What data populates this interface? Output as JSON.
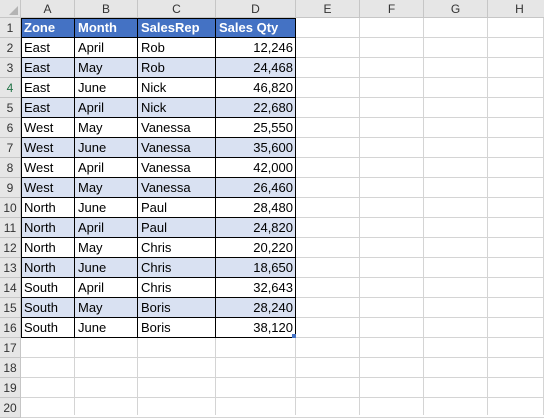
{
  "columns": [
    "A",
    "B",
    "C",
    "D",
    "E",
    "F",
    "G",
    "H"
  ],
  "row_numbers": [
    "1",
    "2",
    "3",
    "4",
    "5",
    "6",
    "7",
    "8",
    "9",
    "10",
    "11",
    "12",
    "13",
    "14",
    "15",
    "16",
    "17",
    "18",
    "19",
    "20"
  ],
  "table": {
    "headers": [
      "Zone",
      "Month",
      "SalesRep",
      "Sales Qty"
    ],
    "rows": [
      [
        "East",
        "April",
        "Rob",
        "12,246"
      ],
      [
        "East",
        "May",
        "Rob",
        "24,468"
      ],
      [
        "East",
        "June",
        "Nick",
        "46,820"
      ],
      [
        "East",
        "April",
        "Nick",
        "22,680"
      ],
      [
        "West",
        "May",
        "Vanessa",
        "25,550"
      ],
      [
        "West",
        "June",
        "Vanessa",
        "35,600"
      ],
      [
        "West",
        "April",
        "Vanessa",
        "42,000"
      ],
      [
        "West",
        "May",
        "Vanessa",
        "26,460"
      ],
      [
        "North",
        "June",
        "Paul",
        "28,480"
      ],
      [
        "North",
        "April",
        "Paul",
        "24,820"
      ],
      [
        "North",
        "May",
        "Chris",
        "20,220"
      ],
      [
        "North",
        "June",
        "Chris",
        "18,650"
      ],
      [
        "South",
        "April",
        "Chris",
        "32,643"
      ],
      [
        "South",
        "May",
        "Boris",
        "28,240"
      ],
      [
        "South",
        "June",
        "Boris",
        "38,120"
      ]
    ]
  },
  "colors": {
    "header_fill": "#4472c4",
    "band_fill": "#d9e1f2",
    "active_row_number": "#217346"
  }
}
